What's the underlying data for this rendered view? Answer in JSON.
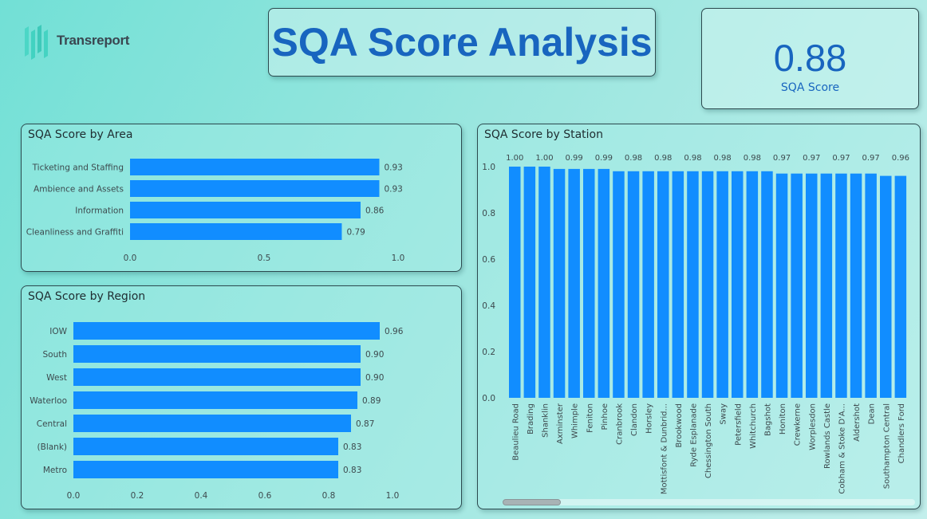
{
  "header": {
    "logo_text": "Transreport",
    "title": "SQA Score Analysis"
  },
  "kpi": {
    "value": "0.88",
    "label": "SQA Score"
  },
  "colors": {
    "bar": "#118dff",
    "title_text": "#1865bf",
    "logo_teal": "#3fd1c0"
  },
  "icons": [
    "transreport-logo-icon"
  ],
  "chart_data": [
    {
      "type": "bar",
      "orientation": "horizontal",
      "title": "SQA Score by Area",
      "categories": [
        "Ticketing and Staffing",
        "Ambience and Assets",
        "Information",
        "Cleanliness and Graffiti"
      ],
      "values": [
        0.93,
        0.93,
        0.86,
        0.79
      ],
      "labels": [
        "0.93",
        "0.93",
        "0.86",
        "0.79"
      ],
      "xlim": [
        0,
        1.0
      ],
      "ticks": [
        "0.0",
        "0.5",
        "1.0"
      ],
      "tick_values": [
        0,
        0.5,
        1.0
      ],
      "grid": false
    },
    {
      "type": "bar",
      "orientation": "horizontal",
      "title": "SQA Score by Region",
      "categories": [
        "IOW",
        "South",
        "West",
        "Waterloo",
        "Central",
        "(Blank)",
        "Metro"
      ],
      "values": [
        0.96,
        0.9,
        0.9,
        0.89,
        0.87,
        0.83,
        0.83
      ],
      "labels": [
        "0.96",
        "0.90",
        "0.90",
        "0.89",
        "0.87",
        "0.83",
        "0.83"
      ],
      "xlim": [
        0,
        1.0
      ],
      "ticks": [
        "0.0",
        "0.2",
        "0.4",
        "0.6",
        "0.8",
        "1.0"
      ],
      "tick_values": [
        0,
        0.2,
        0.4,
        0.6,
        0.8,
        1.0
      ],
      "grid": false
    },
    {
      "type": "bar",
      "orientation": "vertical",
      "title": "SQA Score by Station",
      "categories": [
        "Beaulieu Road",
        "Brading",
        "Shanklin",
        "Axminster",
        "Whimple",
        "Feniton",
        "Pinhoe",
        "Cranbrook",
        "Clandon",
        "Horsley",
        "Mottisfont & Dunbrid...",
        "Brookwood",
        "Ryde Esplanade",
        "Chessington South",
        "Sway",
        "Petersfield",
        "Whitchurch",
        "Bagshot",
        "Honiton",
        "Crewkerne",
        "Worplesdon",
        "Rowlands Castle",
        "Cobham & Stoke D'A...",
        "Aldershot",
        "Dean",
        "Southampton Central",
        "Chandlers Ford"
      ],
      "values": [
        1.0,
        1.0,
        1.0,
        0.99,
        0.99,
        0.99,
        0.99,
        0.98,
        0.98,
        0.98,
        0.98,
        0.98,
        0.98,
        0.98,
        0.98,
        0.98,
        0.98,
        0.98,
        0.97,
        0.97,
        0.97,
        0.97,
        0.97,
        0.97,
        0.97,
        0.96,
        0.96
      ],
      "labels": [
        "1.00",
        "",
        "1.00",
        "",
        "0.99",
        "",
        "0.99",
        "",
        "0.98",
        "",
        "0.98",
        "",
        "0.98",
        "",
        "0.98",
        "",
        "0.98",
        "",
        "0.97",
        "",
        "0.97",
        "",
        "0.97",
        "",
        "0.97",
        "",
        "0.96"
      ],
      "ylim": [
        0,
        1.0
      ],
      "ticks": [
        "0.0",
        "0.2",
        "0.4",
        "0.6",
        "0.8",
        "1.0"
      ],
      "tick_values": [
        0,
        0.2,
        0.4,
        0.6,
        0.8,
        1.0
      ],
      "grid": false,
      "scrollbar": true
    }
  ]
}
